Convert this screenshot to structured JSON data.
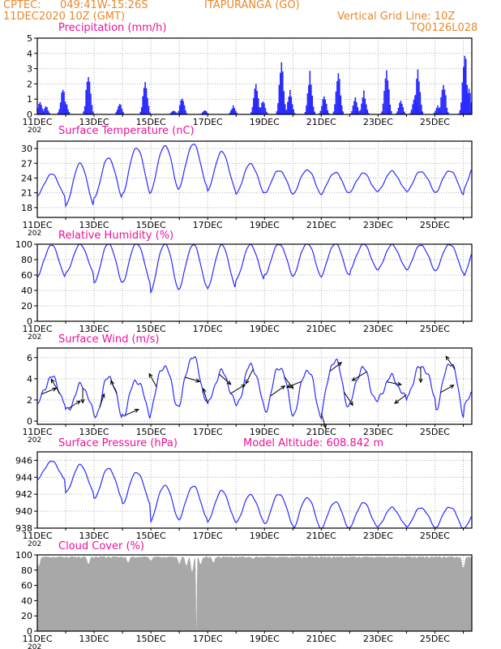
{
  "header": {
    "source": "CPTEC:",
    "coords": "049:41W-15:26S",
    "location": "ITAPURANGA (GO)",
    "init_time": "11DEC2020 10Z (GMT)",
    "grid_note": "Vertical Grid Line: 10Z",
    "model_code": "TQ0126L028"
  },
  "colors": {
    "header": "#e8882a",
    "panel_title": "#ee1199",
    "series": "#2b2bff",
    "cloud": "#a8a8a8"
  },
  "x_axis": {
    "tick_labels": [
      "11DEC",
      "13DEC",
      "15DEC",
      "17DEC",
      "19DEC",
      "21DEC",
      "23DEC",
      "25DEC"
    ],
    "tick_days": [
      0,
      2,
      4,
      6,
      8,
      10,
      12,
      14
    ],
    "start": "11DEC2020 10Z",
    "end_day": 15.3,
    "sub_label": "202"
  },
  "chart_data": [
    {
      "type": "bar",
      "title": "Precipitation (mm/h)",
      "ylim": [
        0,
        5
      ],
      "yticks": [
        0,
        1,
        2,
        3,
        4,
        5
      ],
      "grid": "dotted",
      "bursts": [
        {
          "day": 0.1,
          "peak": 0.9
        },
        {
          "day": 0.3,
          "peak": 0.6
        },
        {
          "day": 0.9,
          "peak": 2.0
        },
        {
          "day": 1.0,
          "peak": 0.8
        },
        {
          "day": 1.8,
          "peak": 3.2
        },
        {
          "day": 2.9,
          "peak": 0.8
        },
        {
          "day": 3.8,
          "peak": 2.6
        },
        {
          "day": 4.8,
          "peak": 0.3
        },
        {
          "day": 5.1,
          "peak": 1.3
        },
        {
          "day": 5.9,
          "peak": 0.3
        },
        {
          "day": 6.9,
          "peak": 0.6
        },
        {
          "day": 7.7,
          "peak": 2.4
        },
        {
          "day": 7.95,
          "peak": 1.0
        },
        {
          "day": 8.6,
          "peak": 3.9
        },
        {
          "day": 8.9,
          "peak": 1.7
        },
        {
          "day": 9.6,
          "peak": 3.0
        },
        {
          "day": 10.1,
          "peak": 1.4
        },
        {
          "day": 10.6,
          "peak": 3.2
        },
        {
          "day": 11.2,
          "peak": 1.2
        },
        {
          "day": 11.5,
          "peak": 1.6
        },
        {
          "day": 12.3,
          "peak": 3.5
        },
        {
          "day": 12.8,
          "peak": 1.0
        },
        {
          "day": 13.3,
          "peak": 1.5
        },
        {
          "day": 13.4,
          "peak": 3.2
        },
        {
          "day": 14.1,
          "peak": 0.6
        },
        {
          "day": 14.3,
          "peak": 2.5
        },
        {
          "day": 15.05,
          "peak": 4.6
        },
        {
          "day": 15.2,
          "peak": 2.0
        }
      ]
    },
    {
      "type": "line",
      "title": "Surface Temperature (nC)",
      "ylim": [
        16,
        31.5
      ],
      "yticks": [
        18,
        21,
        24,
        27,
        30
      ],
      "grid": "dotted",
      "daily_min": [
        20.0,
        18.0,
        20.0,
        21.0,
        21.5,
        22.0,
        21.0,
        20.5,
        21.0,
        21.0,
        21.0,
        21.0,
        21.0,
        21.0,
        21.0,
        22.0
      ],
      "daily_max": [
        25.0,
        27.0,
        28.0,
        30.0,
        30.5,
        31.0,
        29.5,
        27.0,
        25.5,
        25.5,
        25.0,
        25.0,
        25.5,
        25.5,
        25.5,
        27.5
      ]
    },
    {
      "type": "line",
      "title": "Relative Humidity (%)",
      "ylim": [
        0,
        100
      ],
      "yticks": [
        0,
        20,
        40,
        60,
        80,
        100
      ],
      "grid": "dotted",
      "daily_min": [
        55,
        60,
        50,
        52,
        40,
        42,
        40,
        52,
        60,
        60,
        60,
        65,
        65,
        65,
        65,
        60
      ],
      "daily_max": [
        100,
        100,
        100,
        100,
        100,
        100,
        100,
        100,
        100,
        100,
        100,
        100,
        100,
        100,
        100,
        100
      ]
    },
    {
      "type": "line",
      "title": "Surface Wind (m/s)",
      "ylim": [
        -0.3,
        6.9
      ],
      "yticks": [
        0,
        2,
        4,
        6
      ],
      "grid": "dotted",
      "daily_min": [
        1.0,
        0.5,
        0.5,
        1.0,
        1.5,
        1.5,
        1.0,
        1.0,
        1.0,
        1.0,
        1.5,
        1.5,
        1.5,
        2.0,
        1.0,
        2.0
      ],
      "daily_max": [
        4.5,
        3.5,
        4.0,
        3.5,
        5.0,
        6.2,
        5.0,
        5.5,
        5.0,
        4.5,
        5.5,
        5.0,
        4.5,
        5.5,
        5.5,
        3.0
      ],
      "vectors": [
        {
          "day": 0.15,
          "u": 1.0,
          "v": 0.4
        },
        {
          "day": 0.8,
          "u": -0.6,
          "v": 1.0
        },
        {
          "day": 1.1,
          "u": 0.8,
          "v": 0.5
        },
        {
          "day": 1.6,
          "u": 0.0,
          "v": -1.0
        },
        {
          "day": 2.2,
          "u": 0.3,
          "v": 0.9
        },
        {
          "day": 2.8,
          "u": -0.4,
          "v": 0.9
        },
        {
          "day": 3.1,
          "u": 0.9,
          "v": 0.4
        },
        {
          "day": 4.2,
          "u": -0.5,
          "v": 0.9
        },
        {
          "day": 5.2,
          "u": 1.0,
          "v": -0.3
        },
        {
          "day": 6.0,
          "u": -0.3,
          "v": 1.0
        },
        {
          "day": 6.4,
          "u": 0.8,
          "v": -0.7
        },
        {
          "day": 6.8,
          "u": 1.0,
          "v": 0.6
        },
        {
          "day": 7.6,
          "u": -0.5,
          "v": -1.0
        },
        {
          "day": 8.2,
          "u": 1.0,
          "v": 0.7
        },
        {
          "day": 8.7,
          "u": 0.6,
          "v": -0.8
        },
        {
          "day": 9.3,
          "u": -1.0,
          "v": -0.4
        },
        {
          "day": 10.0,
          "u": 0.3,
          "v": -1.0
        },
        {
          "day": 10.3,
          "u": 0.8,
          "v": 0.6
        },
        {
          "day": 10.8,
          "u": 0.6,
          "v": -0.9
        },
        {
          "day": 11.6,
          "u": -1.0,
          "v": -0.6
        },
        {
          "day": 12.3,
          "u": 1.0,
          "v": -0.2
        },
        {
          "day": 13.0,
          "u": -0.8,
          "v": -0.6
        },
        {
          "day": 13.5,
          "u": 0.0,
          "v": -1.0
        },
        {
          "day": 14.2,
          "u": 0.9,
          "v": 0.5
        },
        {
          "day": 14.7,
          "u": -0.6,
          "v": 0.9
        }
      ]
    },
    {
      "type": "line",
      "title": "Surface Pressure (hPa)",
      "subtitle": "Model Altitude: 608.842 m",
      "ylim": [
        938,
        947
      ],
      "yticks": [
        938,
        940,
        942,
        944,
        946
      ],
      "grid": "dotted",
      "daily_min": [
        943.5,
        942.0,
        941.5,
        941.0,
        939.0,
        939.0,
        938.5,
        938.5,
        938.5,
        938.0,
        938.0,
        938.0,
        938.0,
        938.0,
        938.0,
        938.0
      ],
      "daily_max": [
        946.0,
        945.5,
        945.0,
        944.5,
        943.0,
        943.0,
        942.5,
        942.0,
        942.0,
        941.5,
        941.0,
        941.0,
        940.5,
        940.5,
        940.5,
        940.0
      ]
    },
    {
      "type": "area",
      "title": "Cloud Cover (%)",
      "ylim": [
        0,
        100
      ],
      "yticks": [
        0,
        20,
        40,
        60,
        80,
        100
      ],
      "grid": "dotted",
      "typical": 98,
      "dips": [
        {
          "day": 0.05,
          "value": 85
        },
        {
          "day": 1.8,
          "value": 88
        },
        {
          "day": 3.2,
          "value": 90
        },
        {
          "day": 4.0,
          "value": 92
        },
        {
          "day": 5.0,
          "value": 88
        },
        {
          "day": 5.25,
          "value": 86
        },
        {
          "day": 5.45,
          "value": 78
        },
        {
          "day": 5.6,
          "value": 0
        },
        {
          "day": 5.75,
          "value": 88
        },
        {
          "day": 6.2,
          "value": 90
        },
        {
          "day": 7.6,
          "value": 95
        },
        {
          "day": 15.0,
          "value": 82
        }
      ]
    }
  ]
}
